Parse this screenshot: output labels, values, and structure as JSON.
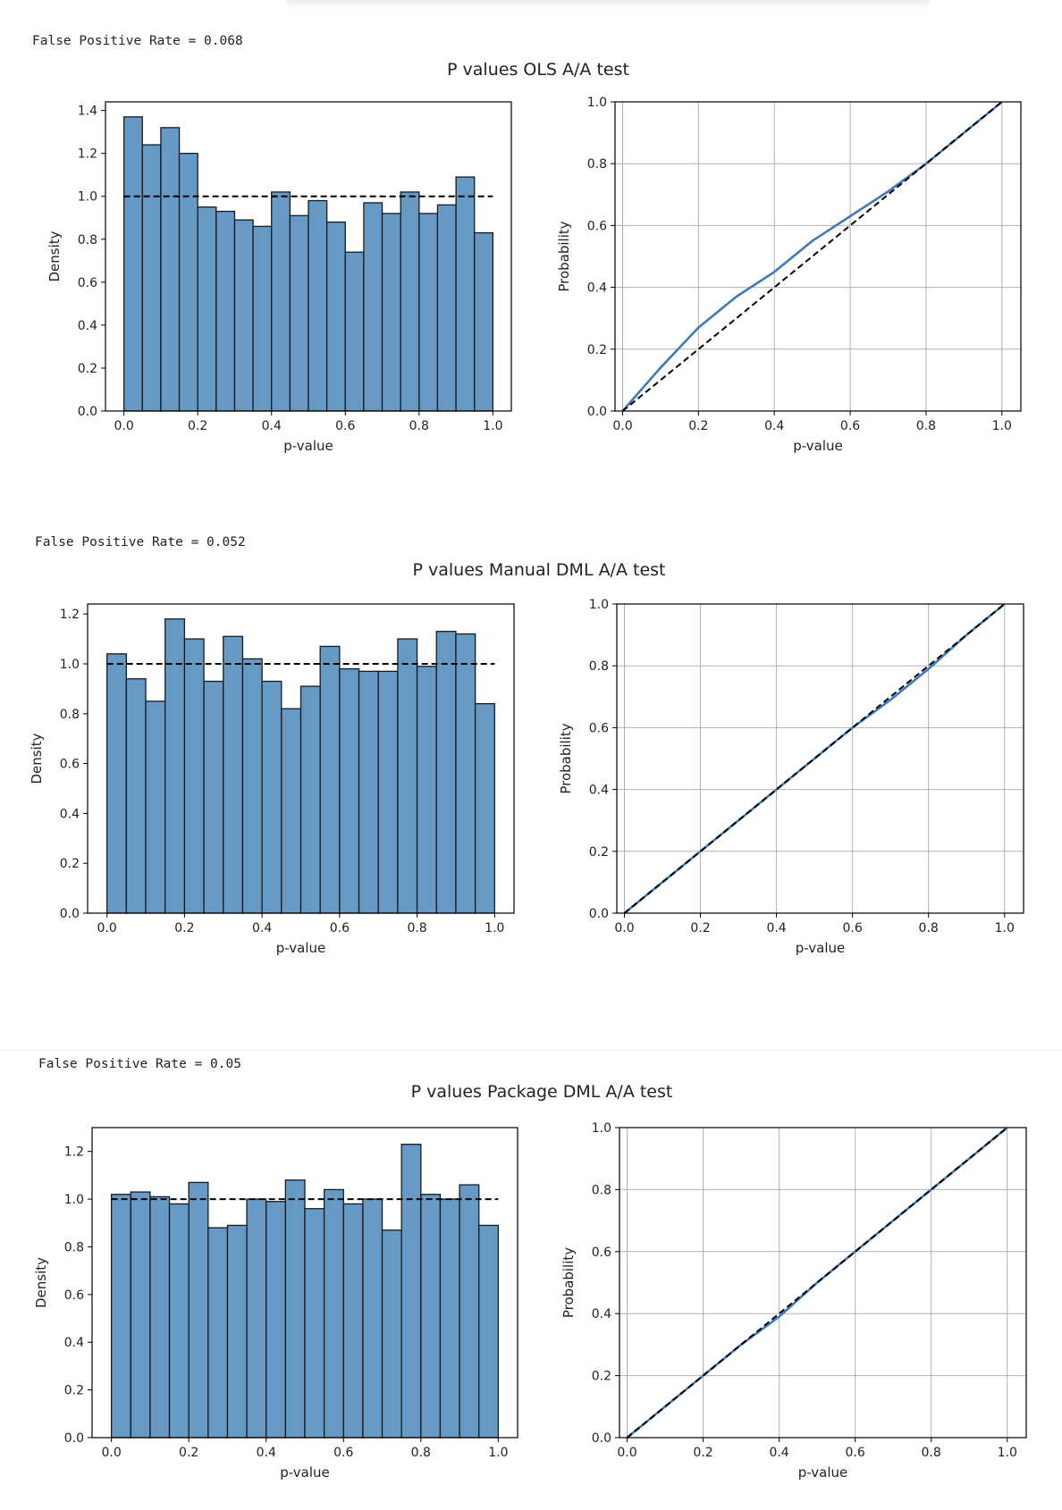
{
  "sections": [
    {
      "fpr_text": "False Positive Rate = 0.068",
      "title": "P values OLS A/A test"
    },
    {
      "fpr_text": "False Positive Rate = 0.052",
      "title": "P values Manual DML A/A test"
    },
    {
      "fpr_text": "False Positive Rate = 0.05",
      "title": "P values Package DML A/A test"
    }
  ],
  "chart_data": [
    {
      "type": "bar",
      "title": "P values OLS A/A test",
      "xlabel": "p-value",
      "ylabel": "Density",
      "bin_edges": [
        0.0,
        0.05,
        0.1,
        0.15,
        0.2,
        0.25,
        0.3,
        0.35,
        0.4,
        0.45,
        0.5,
        0.55,
        0.6,
        0.65,
        0.7,
        0.75,
        0.8,
        0.85,
        0.9,
        0.95,
        1.0
      ],
      "values": [
        1.37,
        1.24,
        1.32,
        1.2,
        0.95,
        0.93,
        0.89,
        0.86,
        1.02,
        0.91,
        0.98,
        0.88,
        0.74,
        0.97,
        0.92,
        1.02,
        0.92,
        0.96,
        1.09,
        0.83
      ],
      "reference_line": 1.0,
      "xlim": [
        -0.05,
        1.05
      ],
      "ylim": [
        0,
        1.44
      ],
      "xticks": [
        "0.0",
        "0.2",
        "0.4",
        "0.6",
        "0.8",
        "1.0"
      ],
      "yticks": [
        "0.0",
        "0.2",
        "0.4",
        "0.6",
        "0.8",
        "1.0",
        "1.2",
        "1.4"
      ],
      "bar_color": "#6699c4",
      "grid": false
    },
    {
      "type": "line",
      "xlabel": "p-value",
      "ylabel": "Probability",
      "series": [
        {
          "x": [
            0.0,
            0.1,
            0.2,
            0.3,
            0.4,
            0.5,
            0.6,
            0.7,
            0.8,
            0.9,
            1.0
          ],
          "y": [
            0.0,
            0.14,
            0.27,
            0.37,
            0.45,
            0.55,
            0.63,
            0.71,
            0.8,
            0.9,
            1.0
          ]
        }
      ],
      "reference_line": "y = x",
      "xlim": [
        -0.02,
        1.05
      ],
      "ylim": [
        0,
        1.0
      ],
      "xticks": [
        "0.0",
        "0.2",
        "0.4",
        "0.6",
        "0.8",
        "1.0"
      ],
      "yticks": [
        "0.0",
        "0.2",
        "0.4",
        "0.6",
        "0.8",
        "1.0"
      ],
      "line_color": "#3d7cb9",
      "grid": true
    },
    {
      "type": "bar",
      "title": "P values Manual DML A/A test",
      "xlabel": "p-value",
      "ylabel": "Density",
      "bin_edges": [
        0.0,
        0.05,
        0.1,
        0.15,
        0.2,
        0.25,
        0.3,
        0.35,
        0.4,
        0.45,
        0.5,
        0.55,
        0.6,
        0.65,
        0.7,
        0.75,
        0.8,
        0.85,
        0.9,
        0.95,
        1.0
      ],
      "values": [
        1.04,
        0.94,
        0.85,
        1.18,
        1.1,
        0.93,
        1.11,
        1.02,
        0.93,
        0.82,
        0.91,
        1.07,
        0.98,
        0.97,
        0.97,
        1.1,
        0.99,
        1.13,
        1.12,
        0.84
      ],
      "reference_line": 1.0,
      "xlim": [
        -0.05,
        1.05
      ],
      "ylim": [
        0,
        1.24
      ],
      "xticks": [
        "0.0",
        "0.2",
        "0.4",
        "0.6",
        "0.8",
        "1.0"
      ],
      "yticks": [
        "0.0",
        "0.2",
        "0.4",
        "0.6",
        "0.8",
        "1.0",
        "1.2"
      ],
      "bar_color": "#6699c4",
      "grid": false
    },
    {
      "type": "line",
      "xlabel": "p-value",
      "ylabel": "Probability",
      "series": [
        {
          "x": [
            0.0,
            0.1,
            0.2,
            0.3,
            0.4,
            0.5,
            0.6,
            0.7,
            0.8,
            0.9,
            1.0
          ],
          "y": [
            0.0,
            0.1,
            0.2,
            0.3,
            0.4,
            0.5,
            0.6,
            0.69,
            0.79,
            0.9,
            1.0
          ]
        }
      ],
      "reference_line": "y = x",
      "xlim": [
        -0.02,
        1.05
      ],
      "ylim": [
        0,
        1.0
      ],
      "xticks": [
        "0.0",
        "0.2",
        "0.4",
        "0.6",
        "0.8",
        "1.0"
      ],
      "yticks": [
        "0.0",
        "0.2",
        "0.4",
        "0.6",
        "0.8",
        "1.0"
      ],
      "line_color": "#3d7cb9",
      "grid": true
    },
    {
      "type": "bar",
      "title": "P values Package DML A/A test",
      "xlabel": "p-value",
      "ylabel": "Density",
      "bin_edges": [
        0.0,
        0.05,
        0.1,
        0.15,
        0.2,
        0.25,
        0.3,
        0.35,
        0.4,
        0.45,
        0.5,
        0.55,
        0.6,
        0.65,
        0.7,
        0.75,
        0.8,
        0.85,
        0.9,
        0.95,
        1.0
      ],
      "values": [
        1.02,
        1.03,
        1.01,
        0.98,
        1.07,
        0.88,
        0.89,
        1.0,
        0.99,
        1.08,
        0.96,
        1.04,
        0.98,
        1.0,
        0.87,
        1.23,
        1.02,
        1.0,
        1.06,
        0.89
      ],
      "reference_line": 1.0,
      "xlim": [
        -0.05,
        1.05
      ],
      "ylim": [
        0,
        1.3
      ],
      "xticks": [
        "0.0",
        "0.2",
        "0.4",
        "0.6",
        "0.8",
        "1.0"
      ],
      "yticks": [
        "0.0",
        "0.2",
        "0.4",
        "0.6",
        "0.8",
        "1.0",
        "1.2"
      ],
      "bar_color": "#6699c4",
      "grid": false
    },
    {
      "type": "line",
      "xlabel": "p-value",
      "ylabel": "Probability",
      "series": [
        {
          "x": [
            0.0,
            0.1,
            0.2,
            0.3,
            0.4,
            0.5,
            0.6,
            0.7,
            0.8,
            0.9,
            1.0
          ],
          "y": [
            0.0,
            0.1,
            0.2,
            0.3,
            0.39,
            0.5,
            0.6,
            0.7,
            0.8,
            0.9,
            1.0
          ]
        }
      ],
      "reference_line": "y = x",
      "xlim": [
        -0.02,
        1.05
      ],
      "ylim": [
        0,
        1.0
      ],
      "xticks": [
        "0.0",
        "0.2",
        "0.4",
        "0.6",
        "0.8",
        "1.0"
      ],
      "yticks": [
        "0.0",
        "0.2",
        "0.4",
        "0.6",
        "0.8",
        "1.0"
      ],
      "line_color": "#3d7cb9",
      "grid": true
    }
  ]
}
